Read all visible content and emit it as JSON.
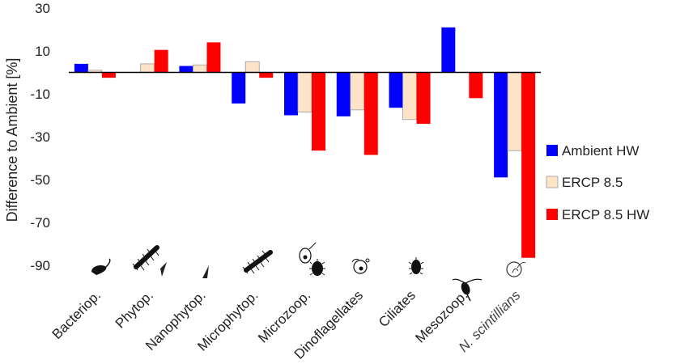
{
  "chart_data": {
    "type": "bar",
    "ylabel": "Difference to Ambient [%]",
    "ylim": [
      -90,
      30
    ],
    "yticks": [
      30,
      10,
      -10,
      -30,
      -50,
      -70,
      -90
    ],
    "categories": [
      "Bacteriop.",
      "Phytop.",
      "Nanophytop.",
      "Microphytop.",
      "Microzoop.",
      "Dinoflagellates",
      "Ciliates",
      "Mesozoop.",
      "N. scintillians"
    ],
    "series": [
      {
        "name": "Ambient HW",
        "color": "#0000ff",
        "values": [
          4,
          0,
          3,
          -14.5,
          -20,
          -20.5,
          -16.5,
          21,
          -49
        ]
      },
      {
        "name": "ERCP 8.5",
        "color": "#fde3c8",
        "values": [
          1,
          4,
          3.5,
          5,
          -18.5,
          -17.5,
          -22,
          0,
          -36.5
        ]
      },
      {
        "name": "ERCP 8.5 HW",
        "color": "#ff0000",
        "values": [
          -2.5,
          10.5,
          14,
          -2.5,
          -36.5,
          -38.5,
          -24,
          -12,
          -86.5
        ]
      }
    ],
    "legend_position": "right",
    "grid": false
  },
  "icons": [
    "bacterium-icon",
    "phytoplankton-chain-icon",
    "nanophytoplankton-icon",
    "microphytoplankton-chain-icon",
    "microzooplankton-icon",
    "dinoflagellate-icon",
    "ciliate-icon",
    "copepod-icon",
    "noctiluca-icon"
  ]
}
